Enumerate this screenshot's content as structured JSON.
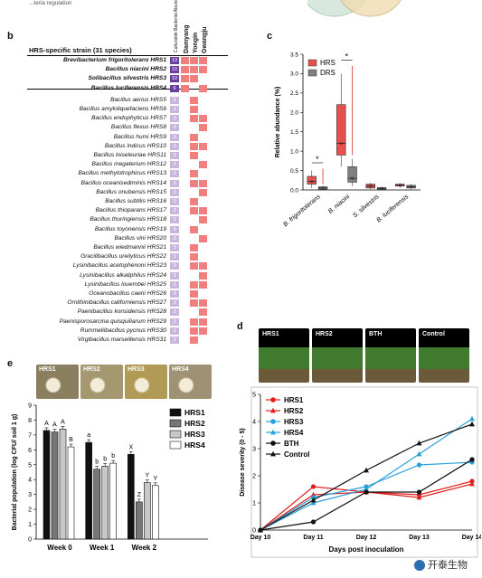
{
  "header_fragment": "...teria regulation",
  "panel_b": {
    "letter": "b",
    "title": "HRS-specific strain (31 species)",
    "col_headers": [
      "Culturable Bacterial Abundance (%)",
      "Damyang",
      "Yongin",
      "Gwangju"
    ],
    "strains": [
      {
        "name": "Brevibacterium frigoritolerans HRS1",
        "bold": true,
        "abund": "13",
        "pattern": [
          1,
          1,
          1
        ]
      },
      {
        "name": "Bacillus niacini HRS2",
        "bold": true,
        "abund": "10",
        "pattern": [
          1,
          1,
          1
        ]
      },
      {
        "name": "Solibacillus silvestris HRS3",
        "bold": true,
        "abund": "10",
        "pattern": [
          1,
          1,
          0
        ]
      },
      {
        "name": "Bacillus luciferensis HRS4",
        "bold": true,
        "abund": "6",
        "pattern": [
          1,
          0,
          1
        ]
      },
      {
        "name": "Bacillus aerius HRS5",
        "bold": false,
        "abund": "3",
        "pattern": [
          0,
          1,
          0
        ]
      },
      {
        "name": "Bacillus amyloliquefaciens HRS6",
        "bold": false,
        "abund": "3",
        "pattern": [
          0,
          1,
          0
        ]
      },
      {
        "name": "Bacillus endophyticus HRS7",
        "bold": false,
        "abund": "3",
        "pattern": [
          0,
          1,
          1
        ]
      },
      {
        "name": "Bacillus flexus HRS8",
        "bold": false,
        "abund": "3",
        "pattern": [
          0,
          0,
          1
        ]
      },
      {
        "name": "Bacillus humi HRS9",
        "bold": false,
        "abund": "3",
        "pattern": [
          0,
          1,
          0
        ]
      },
      {
        "name": "Bacillus indicus HRS10",
        "bold": false,
        "abund": "3",
        "pattern": [
          0,
          1,
          1
        ]
      },
      {
        "name": "Bacillus loiseleuriae HRS11",
        "bold": false,
        "abund": "3",
        "pattern": [
          0,
          1,
          0
        ]
      },
      {
        "name": "Bacillus megaterium HRS12",
        "bold": false,
        "abund": "3",
        "pattern": [
          0,
          0,
          1
        ]
      },
      {
        "name": "Bacillus methylotrophicus HRS13",
        "bold": false,
        "abund": "3",
        "pattern": [
          0,
          1,
          0
        ]
      },
      {
        "name": "Bacillus oceanisediminis HRS14",
        "bold": false,
        "abund": "3",
        "pattern": [
          0,
          1,
          1
        ]
      },
      {
        "name": "Bacillus onubensis HRS15",
        "bold": false,
        "abund": "3",
        "pattern": [
          0,
          0,
          1
        ]
      },
      {
        "name": "Bacillus subtilis HRS16",
        "bold": false,
        "abund": "3",
        "pattern": [
          0,
          1,
          0
        ]
      },
      {
        "name": "Bacillus thioparans HRS17",
        "bold": false,
        "abund": "3",
        "pattern": [
          0,
          1,
          1
        ]
      },
      {
        "name": "Bacillus thuringiensis HRS18",
        "bold": false,
        "abund": "3",
        "pattern": [
          0,
          0,
          1
        ]
      },
      {
        "name": "Bacillus toyonensis HRS19",
        "bold": false,
        "abund": "3",
        "pattern": [
          0,
          1,
          0
        ]
      },
      {
        "name": "Bacillus vini HRS20",
        "bold": false,
        "abund": "3",
        "pattern": [
          0,
          0,
          1
        ]
      },
      {
        "name": "Bacillus wiedmannii HRS21",
        "bold": false,
        "abund": "3",
        "pattern": [
          0,
          1,
          0
        ]
      },
      {
        "name": "Gracilibacillus ureilyticus HRS22",
        "bold": false,
        "abund": "3",
        "pattern": [
          0,
          1,
          0
        ]
      },
      {
        "name": "Lysinibacillus acetophenoni HRS23",
        "bold": false,
        "abund": "3",
        "pattern": [
          0,
          1,
          1
        ]
      },
      {
        "name": "Lysinibacillus alkaliphilus HRS24",
        "bold": false,
        "abund": "3",
        "pattern": [
          0,
          0,
          1
        ]
      },
      {
        "name": "Lysinibacillus louembei HRS25",
        "bold": false,
        "abund": "3",
        "pattern": [
          0,
          1,
          1
        ]
      },
      {
        "name": "Oceanobacillus caeni HRS26",
        "bold": false,
        "abund": "3",
        "pattern": [
          0,
          1,
          0
        ]
      },
      {
        "name": "Ornithinibacillus californiensis HRS27",
        "bold": false,
        "abund": "3",
        "pattern": [
          0,
          1,
          1
        ]
      },
      {
        "name": "Paenibacillus konsidensis HRS28",
        "bold": false,
        "abund": "3",
        "pattern": [
          0,
          0,
          1
        ]
      },
      {
        "name": "Paenisporosarcina quisquiliarum HRS29",
        "bold": false,
        "abund": "3",
        "pattern": [
          0,
          1,
          1
        ]
      },
      {
        "name": "Rummeliibacillus pycnus HRS30",
        "bold": false,
        "abund": "3",
        "pattern": [
          0,
          1,
          1
        ]
      },
      {
        "name": "Virgibacillus marseillensis HRS31",
        "bold": false,
        "abund": "3",
        "pattern": [
          0,
          1,
          0
        ]
      }
    ],
    "colors": {
      "top": "#6a3fa0",
      "rest": "#c9b6dd",
      "presence": "#f08080"
    }
  },
  "panel_c": {
    "letter": "c",
    "chart_data": {
      "type": "box",
      "ylabel": "Relative abundance (%)",
      "ylim": [
        0,
        3.5
      ],
      "yticks": [
        "0.0",
        "0.5",
        "1.0",
        "1.5",
        "2.0",
        "2.5",
        "3.0",
        "3.5"
      ],
      "categories": [
        "B. frigoritolerans",
        "B. niacini",
        "S. silvestris",
        "B. luciferensis"
      ],
      "series": [
        {
          "name": "HRS",
          "color": "#e8504f",
          "boxes": [
            [
              0.05,
              0.15,
              0.22,
              0.35,
              0.5
            ],
            [
              0.6,
              0.9,
              1.2,
              2.2,
              3.0
            ],
            [
              0.02,
              0.05,
              0.1,
              0.15,
              0.18
            ],
            [
              0.05,
              0.1,
              0.12,
              0.15,
              0.18
            ]
          ]
        },
        {
          "name": "DRS",
          "color": "#808080",
          "boxes": [
            [
              0.0,
              0.02,
              0.05,
              0.08,
              0.1
            ],
            [
              0.1,
              0.2,
              0.3,
              0.6,
              0.8
            ],
            [
              0.0,
              0.02,
              0.04,
              0.06,
              0.08
            ],
            [
              0.02,
              0.05,
              0.08,
              0.12,
              0.15
            ]
          ]
        }
      ],
      "annotations": [
        "*",
        "*"
      ]
    }
  },
  "panel_e": {
    "letter": "e",
    "photo_labels": [
      "HRS1",
      "HRS2",
      "HRS3",
      "HRS4"
    ],
    "chart_data": {
      "type": "bar",
      "ylabel": "Bacterial population (log CFU/ soil 1 g)",
      "ylim": [
        0,
        9
      ],
      "yticks": [
        "0",
        "1",
        "2",
        "3",
        "4",
        "5",
        "6",
        "7",
        "8",
        "9"
      ],
      "categories": [
        "Week 0",
        "Week 1",
        "Week 2"
      ],
      "series": [
        {
          "name": "HRS1",
          "color": "#111111",
          "values": [
            7.3,
            6.5,
            5.7
          ]
        },
        {
          "name": "HRS2",
          "color": "#777777",
          "values": [
            7.2,
            4.7,
            2.5
          ]
        },
        {
          "name": "HRS3",
          "color": "#c8c8c8",
          "values": [
            7.4,
            4.9,
            3.8
          ]
        },
        {
          "name": "HRS4",
          "color": "#ffffff",
          "values": [
            6.2,
            5.1,
            3.6
          ]
        }
      ],
      "letters": [
        [
          "A",
          "A",
          "A",
          "B"
        ],
        [
          "a",
          "b",
          "b",
          "b"
        ],
        [
          "X",
          "Z",
          "Y",
          "Y"
        ]
      ]
    }
  },
  "panel_d": {
    "letter": "d",
    "photo_labels": [
      "HRS1",
      "HRS2",
      "BTH",
      "Control"
    ],
    "chart_data": {
      "type": "line",
      "xlabel": "Days post inoculation",
      "ylabel": "Disease severity (0 - 5)",
      "ylim": [
        0,
        5
      ],
      "yticks": [
        "0",
        "1",
        "2",
        "3",
        "4",
        "5"
      ],
      "x": [
        "Day 10",
        "Day 11",
        "Day 12",
        "Day 13",
        "Day 14"
      ],
      "series": [
        {
          "name": "HRS1",
          "color": "#e02020",
          "marker": "circle",
          "values": [
            0,
            1.6,
            1.4,
            1.3,
            1.8
          ]
        },
        {
          "name": "HRS2",
          "color": "#e02020",
          "marker": "triangle",
          "values": [
            0,
            1.3,
            1.4,
            1.2,
            1.7
          ]
        },
        {
          "name": "HRS3",
          "color": "#2aa0d8",
          "marker": "circle",
          "values": [
            0,
            1.2,
            1.6,
            2.4,
            2.5
          ]
        },
        {
          "name": "HRS4",
          "color": "#2aa0d8",
          "marker": "triangle",
          "values": [
            0,
            1.0,
            1.5,
            2.8,
            4.1
          ]
        },
        {
          "name": "BTH",
          "color": "#111111",
          "marker": "circle",
          "values": [
            0,
            0.3,
            1.4,
            1.4,
            2.6
          ]
        },
        {
          "name": "Control",
          "color": "#111111",
          "marker": "triangle",
          "values": [
            0,
            1.1,
            2.2,
            3.2,
            3.9
          ]
        }
      ]
    }
  },
  "watermark": "开泰生物"
}
